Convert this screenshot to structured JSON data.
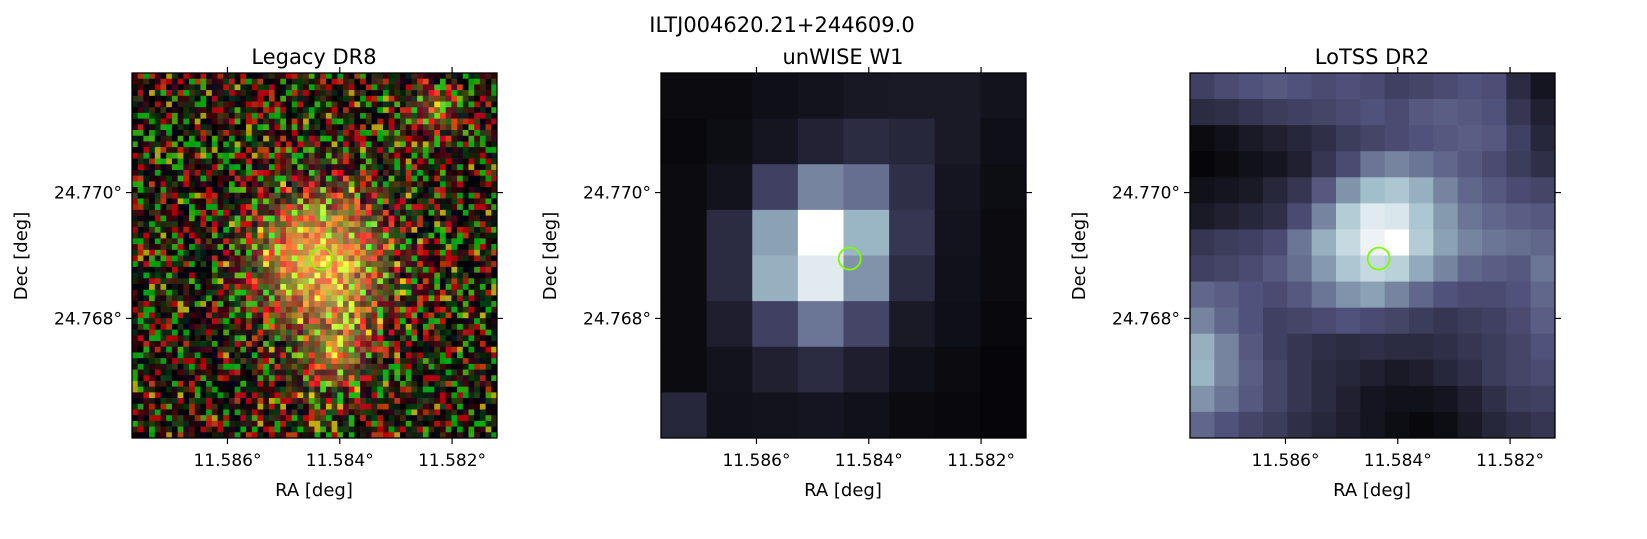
{
  "figure": {
    "title": "ILTJ004620.21+244609.0"
  },
  "chart_data": [
    {
      "type": "heatmap",
      "title": "Legacy DR8",
      "xlabel": "RA [deg]",
      "ylabel": "Dec [deg]",
      "xticks": [
        11.586,
        11.584,
        11.582
      ],
      "xtick_labels": [
        "11.586°",
        "11.584°",
        "11.582°"
      ],
      "yticks": [
        24.77,
        24.768
      ],
      "ytick_labels": [
        "24.770°",
        "24.768°"
      ],
      "xlim": [
        11.5877,
        11.5812
      ],
      "ylim": [
        24.7661,
        24.7719
      ],
      "image": {
        "kind": "rgb_noise",
        "grid": [
          64,
          64
        ],
        "sources": [
          {
            "ra": 11.5843,
            "dec": 24.7689,
            "peak": 1.0,
            "sigma": 0.0008
          },
          {
            "ra": 11.5823,
            "dec": 24.7713,
            "peak": 0.35,
            "sigma": 0.00035
          },
          {
            "ra": 11.5839,
            "dec": 24.7676,
            "peak": 0.3,
            "sigma": 0.00035
          },
          {
            "ra": 11.5842,
            "dec": 24.7671,
            "peak": 0.25,
            "sigma": 0.00045
          }
        ]
      },
      "marker": {
        "ra": 11.58434,
        "dec": 24.76895,
        "color": "#7cfc00"
      }
    },
    {
      "type": "heatmap",
      "title": "unWISE W1",
      "xlabel": "RA [deg]",
      "ylabel": "Dec [deg]",
      "xticks": [
        11.586,
        11.584,
        11.582
      ],
      "xtick_labels": [
        "11.586°",
        "11.584°",
        "11.582°"
      ],
      "yticks": [
        24.77,
        24.768
      ],
      "ytick_labels": [
        "24.770°",
        "24.768°"
      ],
      "xlim": [
        11.5877,
        11.5812
      ],
      "ylim": [
        24.7661,
        24.7719
      ],
      "image": {
        "kind": "bone",
        "grid_rows": 8,
        "grid_cols": 8,
        "values": [
          [
            0.05,
            0.05,
            0.07,
            0.09,
            0.11,
            0.12,
            0.12,
            0.09
          ],
          [
            0.04,
            0.06,
            0.1,
            0.16,
            0.2,
            0.18,
            0.12,
            0.07
          ],
          [
            0.05,
            0.09,
            0.3,
            0.55,
            0.48,
            0.22,
            0.1,
            0.06
          ],
          [
            0.05,
            0.2,
            0.65,
            1.0,
            0.72,
            0.25,
            0.09,
            0.05
          ],
          [
            0.05,
            0.2,
            0.7,
            0.92,
            0.6,
            0.2,
            0.08,
            0.05
          ],
          [
            0.05,
            0.14,
            0.3,
            0.5,
            0.32,
            0.12,
            0.07,
            0.04
          ],
          [
            0.05,
            0.09,
            0.15,
            0.2,
            0.14,
            0.08,
            0.05,
            0.03
          ],
          [
            0.18,
            0.08,
            0.09,
            0.1,
            0.08,
            0.05,
            0.04,
            0.03
          ]
        ]
      },
      "marker": {
        "ra": 11.58434,
        "dec": 24.76895,
        "color": "#7cfc00"
      }
    },
    {
      "type": "heatmap",
      "title": "LoTSS DR2",
      "xlabel": "RA [deg]",
      "ylabel": "Dec [deg]",
      "xticks": [
        11.586,
        11.584,
        11.582
      ],
      "xtick_labels": [
        "11.586°",
        "11.584°",
        "11.582°"
      ],
      "yticks": [
        24.77,
        24.768
      ],
      "ytick_labels": [
        "24.770°",
        "24.768°"
      ],
      "xlim": [
        11.5877,
        11.5812
      ],
      "ylim": [
        24.7661,
        24.7719
      ],
      "image": {
        "kind": "bone",
        "grid_rows": 14,
        "grid_cols": 15,
        "values": [
          [
            0.3,
            0.35,
            0.38,
            0.4,
            0.38,
            0.35,
            0.37,
            0.35,
            0.3,
            0.32,
            0.35,
            0.38,
            0.36,
            0.2,
            0.1
          ],
          [
            0.2,
            0.22,
            0.25,
            0.28,
            0.3,
            0.32,
            0.35,
            0.38,
            0.35,
            0.4,
            0.42,
            0.4,
            0.38,
            0.25,
            0.15
          ],
          [
            0.05,
            0.08,
            0.12,
            0.15,
            0.18,
            0.22,
            0.28,
            0.32,
            0.35,
            0.38,
            0.4,
            0.42,
            0.4,
            0.3,
            0.18
          ],
          [
            0.03,
            0.05,
            0.08,
            0.1,
            0.15,
            0.25,
            0.35,
            0.5,
            0.55,
            0.5,
            0.45,
            0.4,
            0.35,
            0.28,
            0.22
          ],
          [
            0.08,
            0.1,
            0.12,
            0.18,
            0.25,
            0.4,
            0.6,
            0.75,
            0.78,
            0.7,
            0.55,
            0.45,
            0.4,
            0.35,
            0.32
          ],
          [
            0.12,
            0.15,
            0.18,
            0.22,
            0.35,
            0.55,
            0.8,
            0.92,
            0.9,
            0.78,
            0.62,
            0.5,
            0.45,
            0.42,
            0.4
          ],
          [
            0.25,
            0.28,
            0.3,
            0.35,
            0.5,
            0.7,
            0.85,
            0.95,
            1.0,
            0.8,
            0.65,
            0.55,
            0.5,
            0.48,
            0.45
          ],
          [
            0.3,
            0.32,
            0.35,
            0.4,
            0.48,
            0.62,
            0.78,
            0.85,
            0.82,
            0.68,
            0.55,
            0.45,
            0.42,
            0.4,
            0.5
          ],
          [
            0.45,
            0.42,
            0.38,
            0.35,
            0.4,
            0.5,
            0.6,
            0.65,
            0.55,
            0.45,
            0.38,
            0.35,
            0.35,
            0.38,
            0.45
          ],
          [
            0.55,
            0.45,
            0.38,
            0.3,
            0.32,
            0.35,
            0.38,
            0.35,
            0.32,
            0.28,
            0.25,
            0.28,
            0.3,
            0.35,
            0.42
          ],
          [
            0.7,
            0.55,
            0.4,
            0.3,
            0.25,
            0.22,
            0.2,
            0.22,
            0.2,
            0.2,
            0.22,
            0.25,
            0.28,
            0.32,
            0.38
          ],
          [
            0.72,
            0.55,
            0.42,
            0.32,
            0.25,
            0.2,
            0.18,
            0.15,
            0.12,
            0.14,
            0.18,
            0.22,
            0.28,
            0.32,
            0.35
          ],
          [
            0.6,
            0.5,
            0.4,
            0.32,
            0.25,
            0.2,
            0.15,
            0.1,
            0.08,
            0.08,
            0.1,
            0.15,
            0.22,
            0.28,
            0.3
          ],
          [
            0.45,
            0.38,
            0.32,
            0.28,
            0.22,
            0.18,
            0.14,
            0.1,
            0.06,
            0.04,
            0.06,
            0.12,
            0.18,
            0.22,
            0.25
          ]
        ]
      },
      "marker": {
        "ra": 11.58434,
        "dec": 24.76895,
        "color": "#7cfc00"
      }
    }
  ]
}
